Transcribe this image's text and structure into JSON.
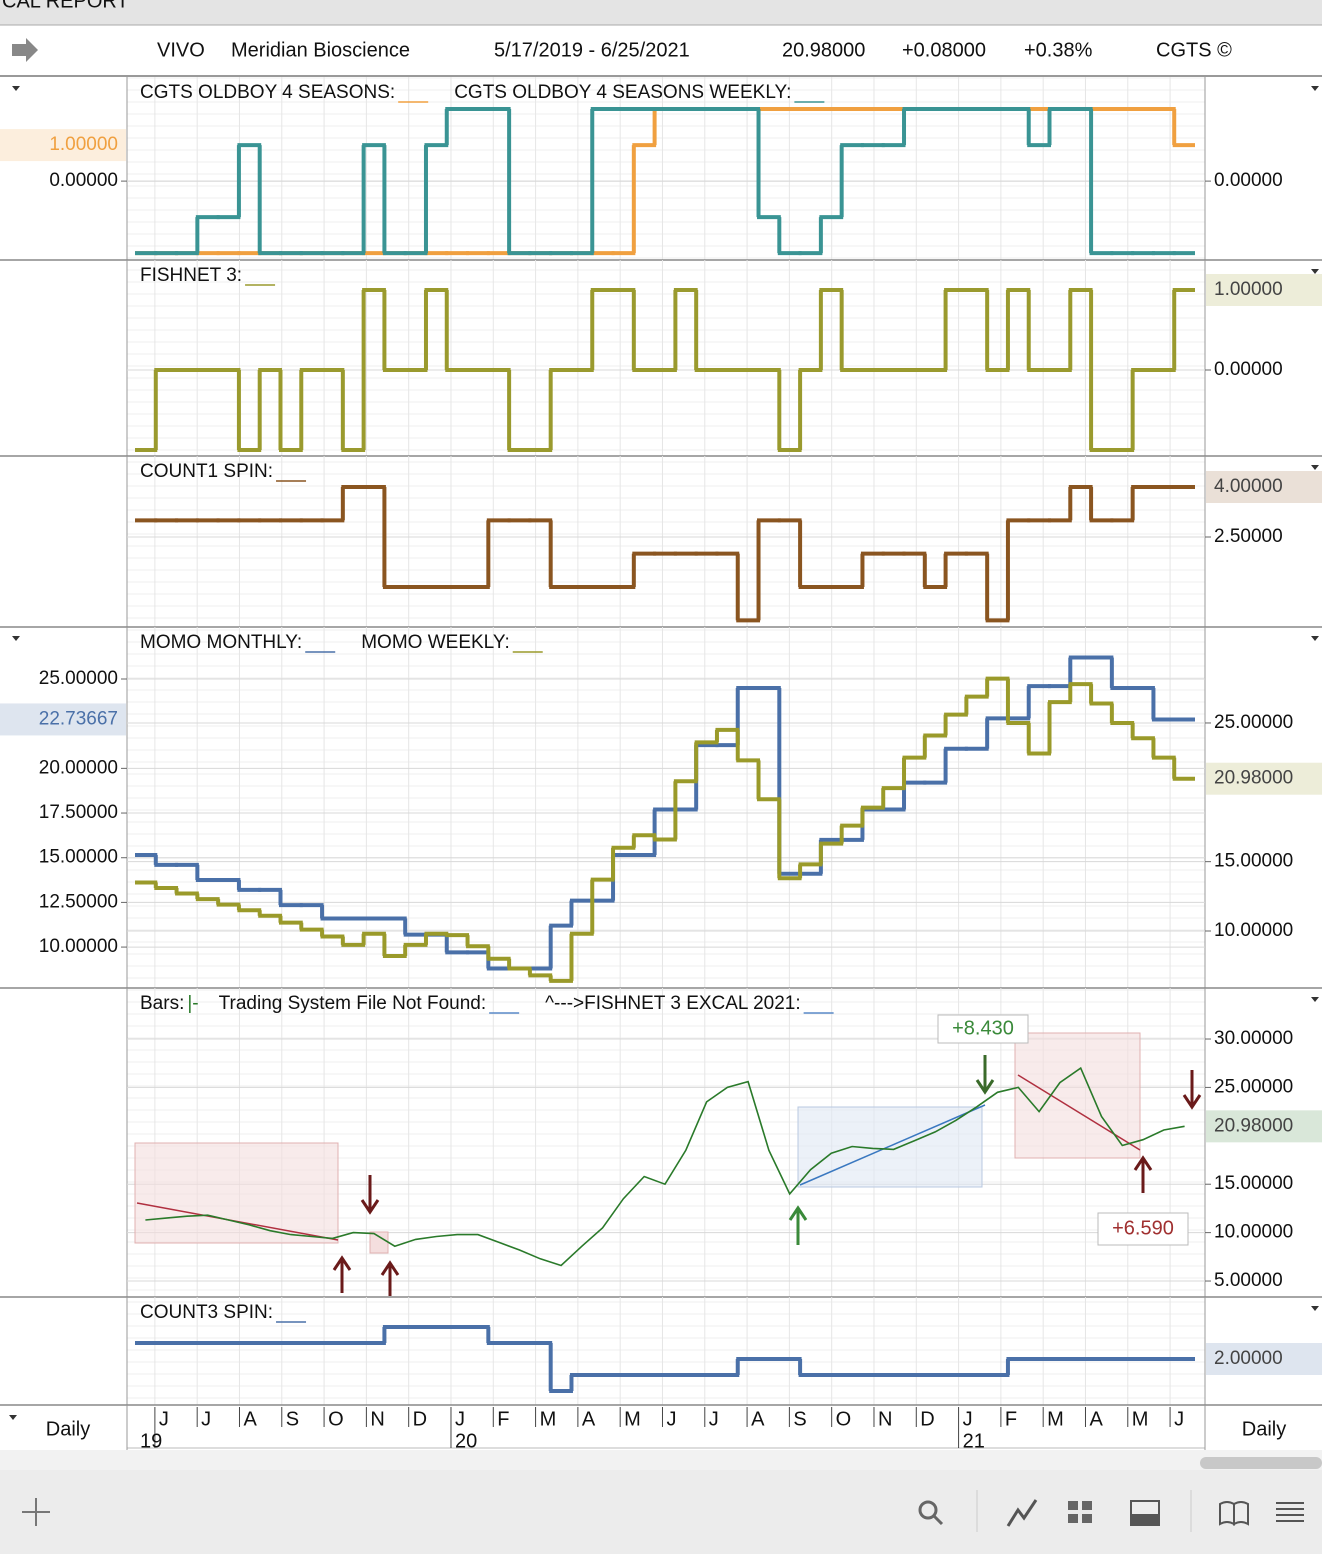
{
  "header": {
    "title": "CAL REPORT",
    "symbol": "VIVO",
    "company": "Meridian Bioscience",
    "range": "5/17/2019 - 6/25/2021",
    "price": "20.98000",
    "change": "+0.08000",
    "change_pct": "+0.38%",
    "brand": "CGTS ©"
  },
  "xaxis": {
    "months": [
      "J",
      "J",
      "A",
      "S",
      "O",
      "N",
      "D",
      "J",
      "F",
      "M",
      "A",
      "M",
      "J",
      "J",
      "A",
      "S",
      "O",
      "N",
      "D",
      "J",
      "F",
      "M",
      "A",
      "M",
      "J"
    ],
    "years": [
      "19",
      "20",
      "21"
    ],
    "period_left": "Daily",
    "period_right": "Daily"
  },
  "chart_data": [
    {
      "type": "step",
      "ylim": [
        -2.19,
        2.89
      ],
      "yticks": [
        {
          "value": 0,
          "label": "0.00000"
        }
      ],
      "y2lim": [
        -2.19,
        2.89
      ],
      "y2ticks": [
        {
          "value": 0,
          "label": "0.00000"
        }
      ],
      "series": [
        {
          "name": "CGTS OLDBOY 4 SEASONS:",
          "color": "#f0a040",
          "axis": "y",
          "last_label": "1.00000",
          "values": [
            -2,
            -2,
            -2,
            -2,
            -2,
            -2,
            -2,
            -2,
            -2,
            -2,
            -2,
            -2,
            -2,
            -2,
            -2,
            -2,
            -2,
            -2,
            -2,
            -2,
            -2,
            -2,
            -2,
            -2,
            1,
            2,
            2,
            2,
            2,
            2,
            2,
            2,
            2,
            2,
            2,
            2,
            2,
            2,
            2,
            2,
            2,
            2,
            2,
            2,
            2,
            2,
            2,
            2,
            2,
            2,
            1
          ]
        },
        {
          "name": "CGTS OLDBOY 4 SEASONS WEEKLY:",
          "color": "#3a9494",
          "axis": "y2",
          "values": [
            -2,
            -2,
            -2,
            -1,
            -1,
            1,
            -2,
            -2,
            -2,
            -2,
            -2,
            1,
            -2,
            -2,
            1,
            2,
            2,
            2,
            -2,
            -2,
            -2,
            -2,
            2,
            2,
            2,
            2,
            2,
            2,
            2,
            2,
            -1,
            -2,
            -2,
            -1,
            1,
            1,
            1,
            2,
            2,
            2,
            2,
            2,
            2,
            1,
            2,
            2,
            -2,
            -2,
            -2,
            -2,
            -2
          ]
        }
      ]
    },
    {
      "type": "step",
      "y2lim": [
        -1.075,
        1.375
      ],
      "y2ticks": [
        {
          "value": 0,
          "label": "0.00000"
        }
      ],
      "series": [
        {
          "name": "FISHNET 3:",
          "color": "#9a9a2e",
          "axis": "y2",
          "last_label": "1.00000",
          "values": [
            -1,
            0,
            0,
            0,
            0,
            -1,
            0,
            -1,
            0,
            0,
            -1,
            1,
            0,
            0,
            1,
            0,
            0,
            0,
            -1,
            -1,
            0,
            0,
            1,
            1,
            0,
            0,
            1,
            0,
            0,
            0,
            0,
            -1,
            0,
            1,
            0,
            0,
            0,
            0,
            0,
            1,
            1,
            0,
            1,
            0,
            0,
            1,
            -1,
            -1,
            0,
            0,
            1
          ]
        }
      ]
    },
    {
      "type": "step",
      "y2lim": [
        -0.2,
        4.93
      ],
      "y2ticks": [
        {
          "value": 2.5,
          "label": "2.50000"
        }
      ],
      "series": [
        {
          "name": "COUNT1 SPIN:",
          "color": "#8a5520",
          "axis": "y2",
          "last_label": "4.00000",
          "values": [
            3,
            3,
            3,
            3,
            3,
            3,
            3,
            3,
            3,
            3,
            4,
            4,
            1,
            1,
            1,
            1,
            1,
            3,
            3,
            3,
            1,
            1,
            1,
            1,
            2,
            2,
            2,
            2,
            2,
            0,
            3,
            3,
            1,
            1,
            1,
            2,
            2,
            2,
            1,
            2,
            2,
            0,
            3,
            3,
            3,
            4,
            3,
            3,
            4,
            4,
            4
          ]
        }
      ]
    },
    {
      "type": "step",
      "ylim": [
        7.71,
        27.91
      ],
      "yticks": [
        {
          "value": 10,
          "label": "10.00000"
        },
        {
          "value": 12.5,
          "label": "12.50000"
        },
        {
          "value": 15,
          "label": "15.00000"
        },
        {
          "value": 17.5,
          "label": "17.50000"
        },
        {
          "value": 20,
          "label": "20.00000"
        },
        {
          "value": 25,
          "label": "25.00000"
        }
      ],
      "y2lim": [
        5.89,
        31.92
      ],
      "y2ticks": [
        {
          "value": 10,
          "label": "10.00000"
        },
        {
          "value": 15,
          "label": "15.00000"
        },
        {
          "value": 25,
          "label": "25.00000"
        }
      ],
      "series": [
        {
          "name": "MOMO MONTHLY:",
          "color": "#4a70a8",
          "axis": "y",
          "last_label": "22.73667",
          "values": [
            15.15,
            14.6,
            14.6,
            13.75,
            13.75,
            13.2,
            13.2,
            12.35,
            12.35,
            11.6,
            11.6,
            11.6,
            11.6,
            10.7,
            10.7,
            9.7,
            9.7,
            8.8,
            8.8,
            8.8,
            11.2,
            12.6,
            12.6,
            15.15,
            15.15,
            17.7,
            17.7,
            21.3,
            21.3,
            24.5,
            24.5,
            14.1,
            14.1,
            16,
            16,
            17.7,
            17.7,
            19.2,
            19.2,
            21.1,
            21.1,
            22.8,
            22.8,
            24.6,
            24.6,
            26.2,
            26.2,
            24.5,
            24.5,
            22.73667,
            22.73667
          ]
        },
        {
          "name": "MOMO WEEKLY:",
          "color": "#9a9a2a",
          "axis": "y2",
          "last_label": "20.98000",
          "values": [
            13.5,
            13.1,
            12.7,
            12.3,
            11.9,
            11.5,
            11.1,
            10.6,
            10.1,
            9.6,
            9,
            9.8,
            8.2,
            9,
            9.8,
            9.7,
            8.9,
            8,
            7.3,
            6.8,
            6.4,
            9.8,
            13.7,
            16,
            16.9,
            16.6,
            20.8,
            23.6,
            24.5,
            22.3,
            19.5,
            13.8,
            14.8,
            16.3,
            17.6,
            18.9,
            20.3,
            22.5,
            24.1,
            25.6,
            26.9,
            28.2,
            25,
            22.8,
            26.5,
            27.8,
            26.4,
            25,
            23.9,
            22.5,
            20.98
          ]
        }
      ]
    },
    {
      "type": "line",
      "y2lim": [
        3.35,
        35.27
      ],
      "y2ticks": [
        {
          "value": 5,
          "label": "5.00000"
        },
        {
          "value": 10,
          "label": "10.00000"
        },
        {
          "value": 15,
          "label": "15.00000"
        },
        {
          "value": 25,
          "label": "25.00000"
        },
        {
          "value": 30,
          "label": "30.00000"
        }
      ],
      "series": [
        {
          "name": "Bars:",
          "symbol": "|-",
          "color": "#2a7a2a",
          "axis": "y2",
          "last_label": "20.98000",
          "values": [
            11.3,
            11.5,
            11.7,
            11.8,
            11.3,
            10.8,
            10.2,
            9.8,
            9.6,
            9.4,
            10,
            9.9,
            8.6,
            9.3,
            9.6,
            9.8,
            9.8,
            9,
            8.2,
            7.3,
            6.6,
            8.6,
            10.5,
            13.5,
            15.8,
            15,
            18.5,
            23.5,
            25,
            25.6,
            18.5,
            14,
            16.5,
            18.2,
            18.9,
            18.7,
            18.6,
            19.5,
            20.4,
            21.6,
            23,
            24.5,
            25,
            22.5,
            25.5,
            27,
            22,
            19,
            19.6,
            20.6,
            20.98
          ]
        }
      ],
      "extra_legend": [
        {
          "text": "Trading System File Not Found:",
          "color": "#5a8ac8"
        },
        {
          "text": "^--->FISHNET 3 EXCAL 2021:",
          "color": "#5a8ac8"
        }
      ],
      "annotations": [
        {
          "text": "+8.430",
          "color": "#3a8a3a"
        },
        {
          "text": "+6.590",
          "color": "#a03030"
        }
      ]
    },
    {
      "type": "step",
      "y2lim": [
        -0.875,
        5.875
      ],
      "series": [
        {
          "name": "COUNT3 SPIN:",
          "color": "#4a70a8",
          "axis": "y2",
          "last_label": "2.00000",
          "values": [
            3,
            3,
            3,
            3,
            3,
            3,
            3,
            3,
            3,
            3,
            3,
            3,
            4,
            4,
            4,
            4,
            4,
            3,
            3,
            3,
            0,
            1,
            1,
            1,
            1,
            1,
            1,
            1,
            1,
            2,
            2,
            2,
            1,
            1,
            1,
            1,
            1,
            1,
            1,
            1,
            1,
            1,
            2,
            2,
            2,
            2,
            2,
            2,
            2,
            2,
            2
          ]
        }
      ]
    }
  ]
}
